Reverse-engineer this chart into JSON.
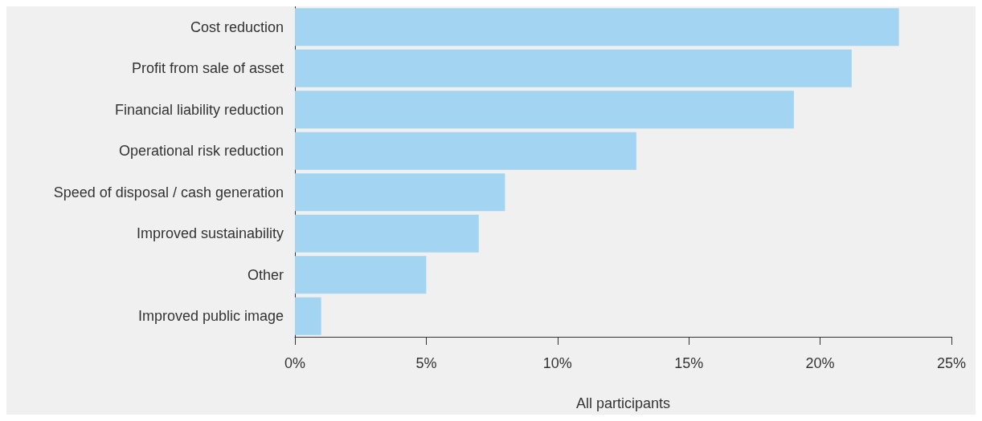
{
  "chart_data": {
    "type": "bar",
    "orientation": "horizontal",
    "xlabel": "All participants",
    "categories": [
      "Cost reduction",
      "Profit from sale of asset",
      "Financial liability reduction",
      "Operational risk reduction",
      "Speed of disposal / cash generation",
      "Improved sustainability",
      "Other",
      "Improved public image"
    ],
    "values": [
      23,
      21.2,
      19,
      13,
      8,
      7,
      5,
      1
    ],
    "color": "#a3d4f2",
    "xlim": [
      0,
      25
    ],
    "xticks": [
      {
        "value": 0,
        "label": "0%"
      },
      {
        "value": 5,
        "label": "5%"
      },
      {
        "value": 10,
        "label": "10%"
      },
      {
        "value": 15,
        "label": "15%"
      },
      {
        "value": 20,
        "label": "20%"
      },
      {
        "value": 25,
        "label": "25%"
      }
    ],
    "grid": false
  }
}
